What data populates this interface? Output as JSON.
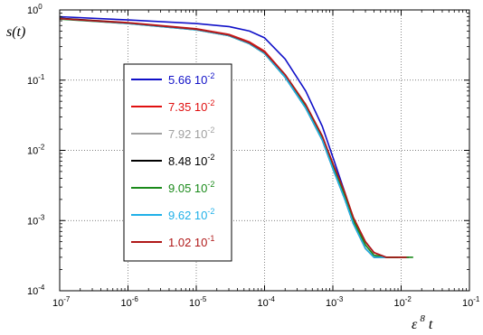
{
  "chart_data": {
    "type": "line",
    "title": "",
    "xlabel": {
      "base": "ε",
      "exp": "8",
      "var": "t"
    },
    "ylabel": "s(t)",
    "xscale": "log",
    "yscale": "log",
    "xlim": [
      1e-07,
      0.1
    ],
    "ylim": [
      0.0001,
      1
    ],
    "grid": true,
    "legend_position": "left-center",
    "x_ticks": [
      {
        "base": "10",
        "exp": "-7"
      },
      {
        "base": "10",
        "exp": "-6"
      },
      {
        "base": "10",
        "exp": "-5"
      },
      {
        "base": "10",
        "exp": "-4"
      },
      {
        "base": "10",
        "exp": "-3"
      },
      {
        "base": "10",
        "exp": "-2"
      },
      {
        "base": "10",
        "exp": "-1"
      }
    ],
    "y_ticks": [
      {
        "base": "10",
        "exp": "-4"
      },
      {
        "base": "10",
        "exp": "-3"
      },
      {
        "base": "10",
        "exp": "-2"
      },
      {
        "base": "10",
        "exp": "-1"
      },
      {
        "base": "10",
        "exp": "0"
      }
    ],
    "series": [
      {
        "name": "5.66 10",
        "exp": "-2",
        "color": "#1010c8",
        "points": [
          [
            1e-07,
            0.8
          ],
          [
            1e-06,
            0.72
          ],
          [
            1e-05,
            0.64
          ],
          [
            3e-05,
            0.58
          ],
          [
            6e-05,
            0.5
          ],
          [
            0.0001,
            0.4
          ],
          [
            0.0002,
            0.2
          ],
          [
            0.0004,
            0.07
          ],
          [
            0.0007,
            0.022
          ],
          [
            0.001,
            0.008
          ],
          [
            0.0015,
            0.0025
          ],
          [
            0.002,
            0.001
          ],
          [
            0.003,
            0.0005
          ],
          [
            0.004,
            0.00035
          ],
          [
            0.006,
            0.0003
          ],
          [
            0.009,
            0.0003
          ],
          [
            0.013,
            0.0003
          ]
        ]
      },
      {
        "name": "7.35 10",
        "exp": "-2",
        "color": "#e01010",
        "points": [
          [
            1e-07,
            0.76
          ],
          [
            1e-06,
            0.66
          ],
          [
            1e-05,
            0.54
          ],
          [
            3e-05,
            0.45
          ],
          [
            6e-05,
            0.35
          ],
          [
            0.0001,
            0.26
          ],
          [
            0.0002,
            0.12
          ],
          [
            0.0004,
            0.045
          ],
          [
            0.0007,
            0.016
          ],
          [
            0.001,
            0.0065
          ],
          [
            0.0015,
            0.0024
          ],
          [
            0.002,
            0.0011
          ],
          [
            0.003,
            0.0005
          ],
          [
            0.004,
            0.00035
          ],
          [
            0.006,
            0.0003
          ],
          [
            0.009,
            0.0003
          ],
          [
            0.013,
            0.0003
          ]
        ]
      },
      {
        "name": "7.92 10",
        "exp": "-2",
        "color": "#a0a0a0",
        "points": [
          [
            1e-07,
            0.76
          ],
          [
            1e-06,
            0.65
          ],
          [
            1e-05,
            0.53
          ],
          [
            3e-05,
            0.44
          ],
          [
            6e-05,
            0.34
          ],
          [
            0.0001,
            0.25
          ],
          [
            0.0002,
            0.115
          ],
          [
            0.0004,
            0.042
          ],
          [
            0.0007,
            0.015
          ],
          [
            0.001,
            0.006
          ],
          [
            0.0015,
            0.0022
          ],
          [
            0.002,
            0.001
          ],
          [
            0.003,
            0.00045
          ],
          [
            0.004,
            0.00032
          ],
          [
            0.006,
            0.0003
          ],
          [
            0.009,
            0.0003
          ]
        ]
      },
      {
        "name": "8.48 10",
        "exp": "-2",
        "color": "#000000",
        "points": [
          [
            1e-07,
            0.76
          ],
          [
            1e-06,
            0.65
          ],
          [
            1e-05,
            0.53
          ],
          [
            3e-05,
            0.43
          ],
          [
            6e-05,
            0.33
          ],
          [
            0.0001,
            0.24
          ],
          [
            0.0002,
            0.11
          ],
          [
            0.0004,
            0.04
          ],
          [
            0.0007,
            0.014
          ],
          [
            0.001,
            0.0055
          ],
          [
            0.0015,
            0.002
          ],
          [
            0.002,
            0.0009
          ],
          [
            0.003,
            0.0004
          ],
          [
            0.004,
            0.0003
          ],
          [
            0.006,
            0.0003
          ],
          [
            0.009,
            0.0003
          ]
        ]
      },
      {
        "name": "9.05 10",
        "exp": "-2",
        "color": "#1a8a1a",
        "points": [
          [
            1e-07,
            0.74
          ],
          [
            1e-06,
            0.64
          ],
          [
            1e-05,
            0.52
          ],
          [
            3e-05,
            0.43
          ],
          [
            6e-05,
            0.33
          ],
          [
            0.0001,
            0.24
          ],
          [
            0.0002,
            0.11
          ],
          [
            0.0004,
            0.042
          ],
          [
            0.0007,
            0.015
          ],
          [
            0.001,
            0.006
          ],
          [
            0.0015,
            0.0022
          ],
          [
            0.002,
            0.001
          ],
          [
            0.003,
            0.00045
          ],
          [
            0.004,
            0.00032
          ],
          [
            0.006,
            0.0003
          ],
          [
            0.009,
            0.0003
          ],
          [
            0.015,
            0.0003
          ]
        ]
      },
      {
        "name": "9.62 10",
        "exp": "-2",
        "color": "#20b0e8",
        "points": [
          [
            1e-07,
            0.75
          ],
          [
            1e-06,
            0.64
          ],
          [
            1e-05,
            0.52
          ],
          [
            3e-05,
            0.43
          ],
          [
            6e-05,
            0.33
          ],
          [
            0.0001,
            0.24
          ],
          [
            0.0002,
            0.11
          ],
          [
            0.0004,
            0.04
          ],
          [
            0.0007,
            0.014
          ],
          [
            0.001,
            0.0055
          ],
          [
            0.0015,
            0.002
          ],
          [
            0.002,
            0.0009
          ],
          [
            0.003,
            0.0004
          ],
          [
            0.004,
            0.0003
          ],
          [
            0.006,
            0.0003
          ]
        ]
      },
      {
        "name": "1.02 10",
        "exp": "-1",
        "color": "#b01818",
        "points": [
          [
            1e-07,
            0.75
          ],
          [
            1e-06,
            0.65
          ],
          [
            1e-05,
            0.53
          ],
          [
            3e-05,
            0.44
          ],
          [
            6e-05,
            0.34
          ],
          [
            0.0001,
            0.25
          ],
          [
            0.0002,
            0.12
          ],
          [
            0.0004,
            0.045
          ],
          [
            0.0007,
            0.016
          ],
          [
            0.001,
            0.0065
          ],
          [
            0.0015,
            0.0025
          ],
          [
            0.002,
            0.0011
          ],
          [
            0.003,
            0.0005
          ],
          [
            0.004,
            0.00035
          ],
          [
            0.006,
            0.0003
          ],
          [
            0.009,
            0.0003
          ],
          [
            0.012,
            0.0003
          ]
        ]
      }
    ]
  }
}
